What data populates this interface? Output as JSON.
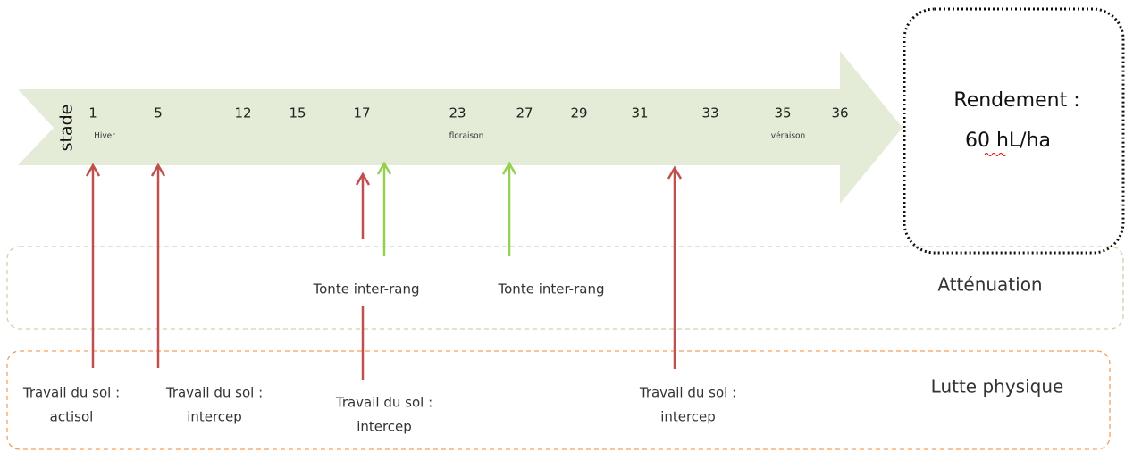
{
  "stage_axis": {
    "label": "stade",
    "stages": [
      {
        "number": 1,
        "note": "Hiver"
      },
      {
        "number": 5
      },
      {
        "number": 12
      },
      {
        "number": 15
      },
      {
        "number": 17
      },
      {
        "number": 23,
        "note": "floraison"
      },
      {
        "number": 27
      },
      {
        "number": 29
      },
      {
        "number": 31
      },
      {
        "number": 33
      },
      {
        "number": 35,
        "note": "véraison"
      },
      {
        "number": 36
      }
    ]
  },
  "result": {
    "title": "Rendement :",
    "value": "60 hL/ha"
  },
  "zones": [
    {
      "label": "Atténuation"
    },
    {
      "label": "Lutte physique"
    }
  ],
  "interventions": [
    {
      "lines": [
        "Travail du sol :",
        "actisol"
      ]
    },
    {
      "lines": [
        "Travail du sol :",
        "intercep"
      ]
    },
    {
      "lines": [
        "Tonte inter-rang"
      ]
    },
    {
      "lines": [
        "Travail du sol :",
        "intercep"
      ]
    },
    {
      "lines": [
        "Tonte inter-rang"
      ]
    },
    {
      "lines": [
        "Travail du sol :",
        "intercep"
      ]
    }
  ]
}
